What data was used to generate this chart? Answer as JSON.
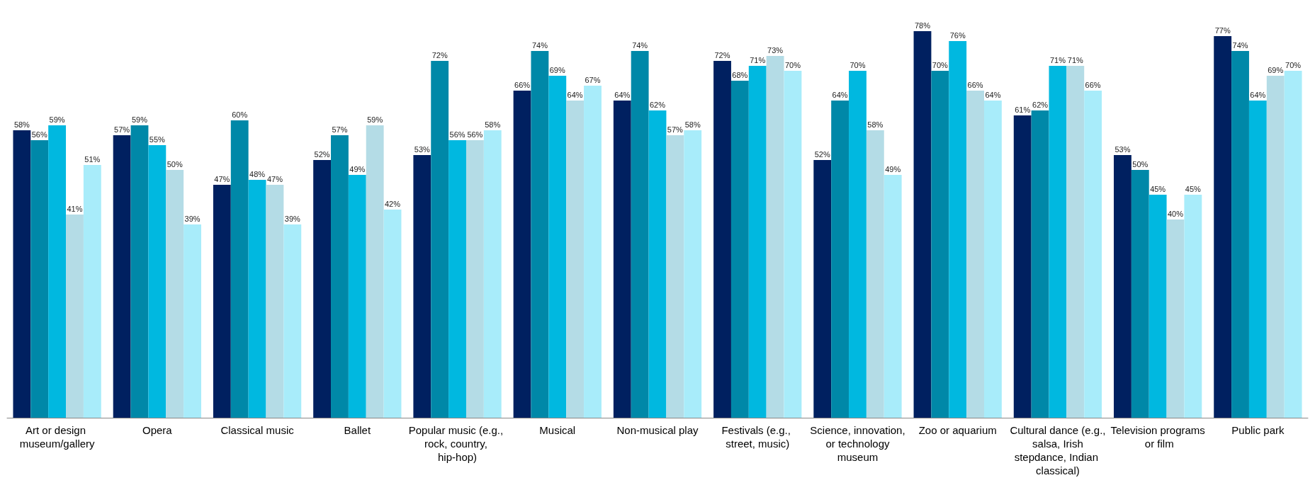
{
  "chart_data": {
    "type": "bar",
    "categories": [
      "Art or design museum/gallery",
      "Opera",
      "Classical music",
      "Ballet",
      "Popular music (e.g., rock, country, hip-hop)",
      "Musical",
      "Non-musical play",
      "Festivals (e.g., street, music)",
      "Science, innovation, or technology museum",
      "Zoo or aquarium",
      "Cultural dance (e.g., salsa, Irish stepdance, Indian classical)",
      "Television programs or film",
      "Public park"
    ],
    "series": [
      {
        "color": "#002060",
        "values": [
          58,
          57,
          47,
          52,
          53,
          66,
          64,
          72,
          52,
          78,
          61,
          53,
          77
        ],
        "value_labels": [
          "58%",
          "57%",
          "47%",
          "52%",
          "53%",
          "66%",
          "64%",
          "72%",
          "52%",
          "78%",
          "61%",
          "53%",
          "77%"
        ]
      },
      {
        "color": "#0088a8",
        "values": [
          56,
          59,
          60,
          57,
          72,
          74,
          74,
          68,
          64,
          70,
          62,
          50,
          74
        ],
        "value_labels": [
          "56%",
          "59%",
          "60%",
          "57%",
          "72%",
          "74%",
          "74%",
          "68%",
          "64%",
          "70%",
          "62%",
          "50%",
          "74%"
        ]
      },
      {
        "color": "#00b8e0",
        "values": [
          59,
          55,
          48,
          49,
          56,
          69,
          62,
          71,
          70,
          76,
          71,
          45,
          64
        ],
        "value_labels": [
          "59%",
          "55%",
          "48%",
          "49%",
          "56%",
          "69%",
          "62%",
          "71%",
          "70%",
          "76%",
          "71%",
          "45%",
          "64%"
        ]
      },
      {
        "color": "#b4dce6",
        "values": [
          41,
          50,
          47,
          59,
          56,
          64,
          57,
          73,
          58,
          66,
          71,
          40,
          69
        ],
        "value_labels": [
          "41%",
          "50%",
          "47%",
          "59%",
          "56%",
          "64%",
          "57%",
          "73%",
          "58%",
          "66%",
          "71%",
          "40%",
          "69%"
        ]
      },
      {
        "color": "#a8ecfa",
        "values": [
          51,
          39,
          39,
          42,
          58,
          67,
          58,
          70,
          49,
          64,
          66,
          45,
          70
        ],
        "value_labels": [
          "51%",
          "39%",
          "39%",
          "42%",
          "58%",
          "67%",
          "58%",
          "70%",
          "49%",
          "64%",
          "66%",
          "45%",
          "70%"
        ]
      }
    ]
  }
}
